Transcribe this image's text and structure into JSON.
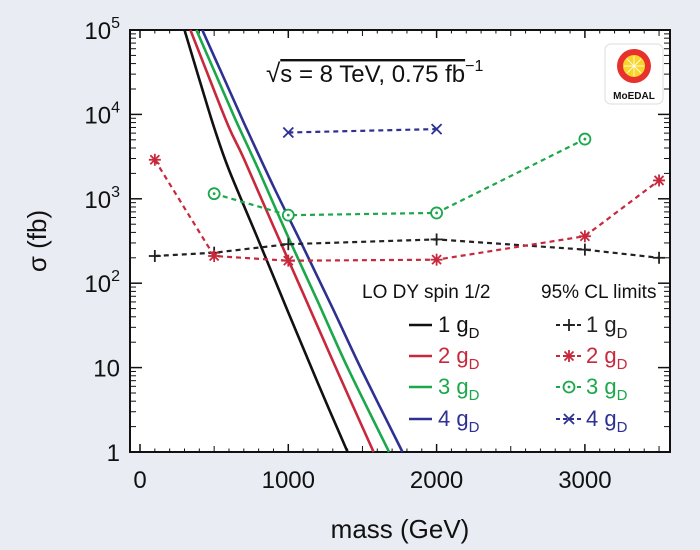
{
  "chart_data": {
    "type": "line",
    "xlabel": "mass (GeV)",
    "ylabel": "σ (fb)",
    "xlim": [
      0,
      3700
    ],
    "ylim": [
      1,
      100000
    ],
    "yscale": "log",
    "x_ticks": [
      0,
      1000,
      2000,
      3000
    ],
    "y_ticks": [
      {
        "value": 1,
        "base": "1",
        "exp": ""
      },
      {
        "value": 10,
        "base": "10",
        "exp": ""
      },
      {
        "value": 100,
        "base": "10",
        "exp": "2"
      },
      {
        "value": 1000,
        "base": "10",
        "exp": "3"
      },
      {
        "value": 10000,
        "base": "10",
        "exp": "4"
      },
      {
        "value": 100000,
        "base": "10",
        "exp": "5"
      }
    ],
    "annotation": {
      "root": "√",
      "s_text": "s = 8 TeV, 0.75 fb",
      "sup": "−1"
    },
    "logo_text": "MoEDAL",
    "legend": {
      "theory_header": "LO DY spin 1/2",
      "limits_header": "95% CL limits",
      "coupling_unit": "g",
      "coupling_sub": "D"
    },
    "theory_series": [
      {
        "name": "1 g_D",
        "label": "1",
        "color": "#111111",
        "x": [
          300,
          400,
          500,
          600,
          800,
          1000,
          1200,
          1400
        ],
        "y": [
          100000,
          26000,
          7000,
          2200,
          320,
          45,
          6.5,
          1
        ]
      },
      {
        "name": "2 g_D",
        "label": "2",
        "color": "#c8283c",
        "x": [
          340,
          460,
          600,
          700,
          900,
          1100,
          1300,
          1575
        ],
        "y": [
          100000,
          29000,
          7000,
          3000,
          470,
          76,
          12,
          1
        ]
      },
      {
        "name": "3 g_D",
        "label": "3",
        "color": "#1aa84a",
        "x": [
          380,
          500,
          640,
          800,
          1000,
          1200,
          1400,
          1680
        ],
        "y": [
          100000,
          33000,
          9000,
          2200,
          350,
          60,
          10,
          1
        ]
      },
      {
        "name": "4 g_D",
        "label": "4",
        "color": "#2e3192",
        "x": [
          420,
          550,
          700,
          900,
          1100,
          1300,
          1500,
          1770
        ],
        "y": [
          100000,
          31000,
          8000,
          1400,
          270,
          50,
          9,
          1
        ]
      }
    ],
    "limit_series": [
      {
        "name": "1 g_D",
        "label": "1",
        "color": "#222222",
        "marker": "plus",
        "x": [
          100,
          500,
          1000,
          2000,
          3000,
          3500
        ],
        "y": [
          210,
          230,
          290,
          330,
          250,
          200
        ]
      },
      {
        "name": "2 g_D",
        "label": "2",
        "color": "#c8283c",
        "marker": "star",
        "x": [
          100,
          500,
          1000,
          2000,
          3000,
          3500
        ],
        "y": [
          2900,
          210,
          185,
          190,
          360,
          1650
        ]
      },
      {
        "name": "3 g_D",
        "label": "3",
        "color": "#1aa84a",
        "marker": "circle",
        "x": [
          500,
          1000,
          2000,
          3000
        ],
        "y": [
          1150,
          640,
          680,
          5100
        ]
      },
      {
        "name": "4 g_D",
        "label": "4",
        "color": "#2e3192",
        "marker": "cross",
        "x": [
          1000,
          2000
        ],
        "y": [
          6100,
          6700
        ]
      }
    ]
  }
}
